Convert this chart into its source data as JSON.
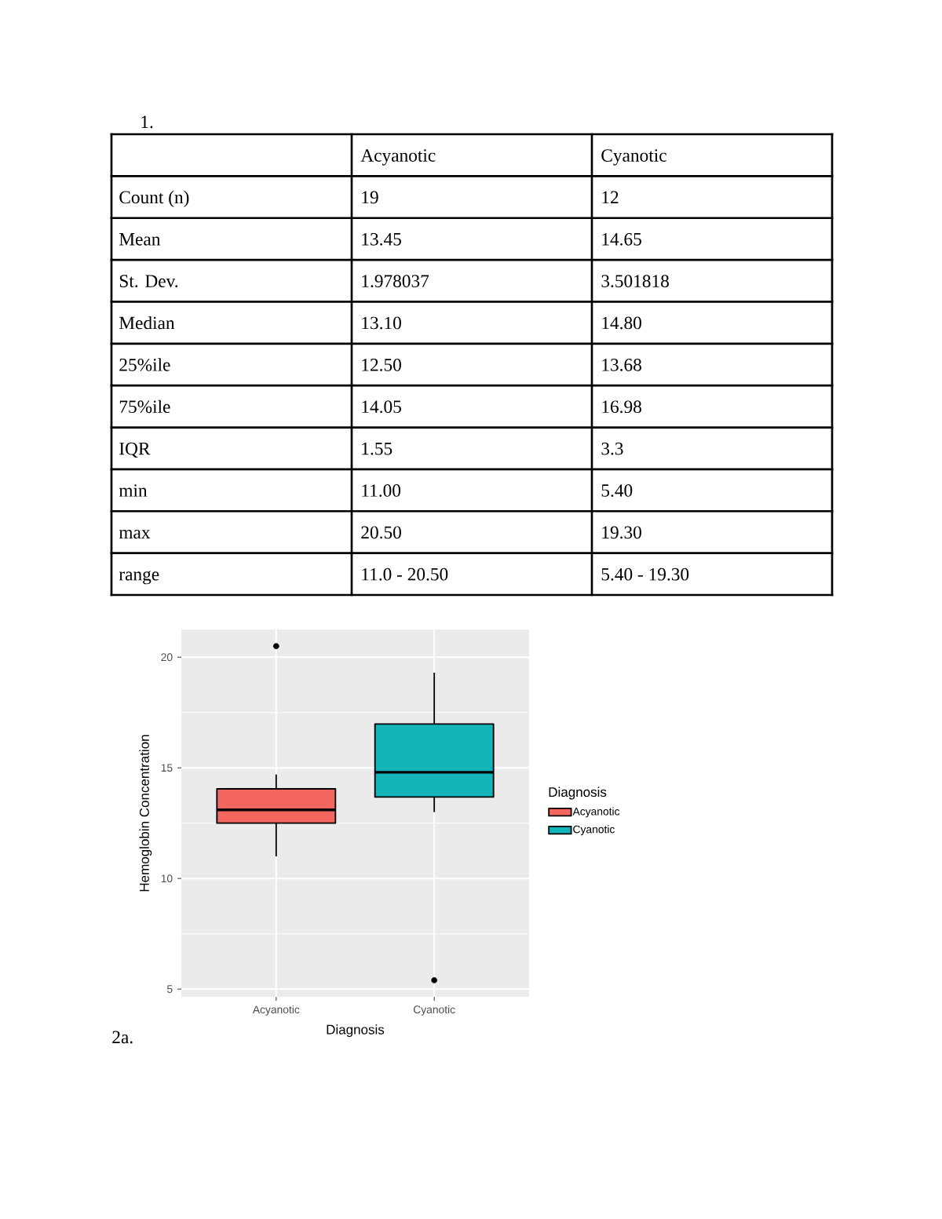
{
  "chart_data": [
    {
      "type": "other",
      "title": "1.",
      "categories": [
        "Acyanotic",
        "Cyanotic"
      ],
      "y_categories": [
        "Count (n)",
        "Mean",
        "St. Dev.",
        "Median",
        "25%ile",
        "75%ile",
        "IQR",
        "min",
        "max",
        "range"
      ],
      "cell_labels": [
        [
          "19",
          "12"
        ],
        [
          "13.45",
          "14.65"
        ],
        [
          "1.978037",
          "3.501818"
        ],
        [
          "13.10",
          "14.80"
        ],
        [
          "12.50",
          "13.68"
        ],
        [
          "14.05",
          "16.98"
        ],
        [
          "1.55",
          "3.3"
        ],
        [
          "11.00",
          "5.40"
        ],
        [
          "20.50",
          "19.30"
        ],
        [
          "11.0 - 20.50",
          "5.40 - 19.30"
        ]
      ]
    },
    {
      "type": "box",
      "xlabel": "Diagnosis",
      "ylabel": "Hemoglobin Concentration",
      "legend_title": "Diagnosis",
      "categories": [
        "Acyanotic",
        "Cyanotic"
      ],
      "series": [
        {
          "name": "Acyanotic",
          "color": "#F3655F",
          "boxes": [
            {
              "low": 11.0,
              "q1": 12.5,
              "median": 13.1,
              "q3": 14.05,
              "high": 14.7,
              "outliers": [
                20.5
              ]
            },
            null
          ]
        },
        {
          "name": "Cyanotic",
          "color": "#14B5B9",
          "boxes": [
            null,
            {
              "low": 13.0,
              "q1": 13.68,
              "median": 14.8,
              "q3": 16.98,
              "high": 19.3,
              "outliers": [
                5.4
              ]
            }
          ]
        }
      ],
      "ylim": [
        4.65,
        21.25
      ],
      "yticks": [
        5,
        10,
        15,
        20
      ],
      "grid": true,
      "legend": "right",
      "annotations": [
        "2a."
      ]
    }
  ]
}
